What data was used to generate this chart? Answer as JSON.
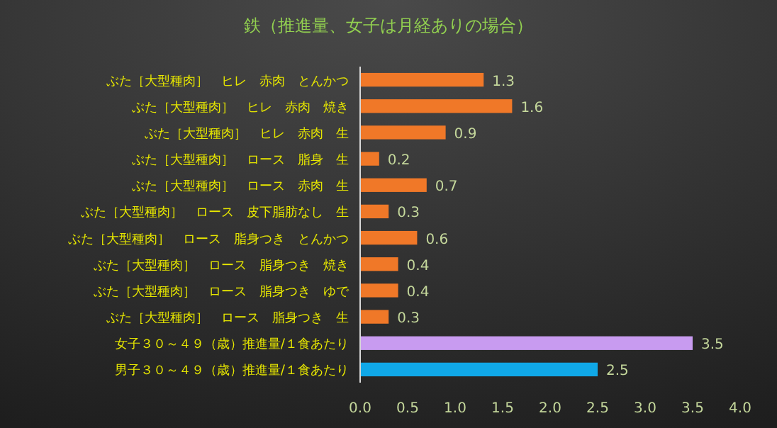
{
  "chart_data": {
    "type": "bar",
    "orientation": "horizontal",
    "title": "鉄（推進量、女子は月経ありの場合）",
    "categories": [
      "ぶた［大型種肉］　ヒレ　赤肉　とんかつ",
      "ぶた［大型種肉］　ヒレ　赤肉　焼き",
      "ぶた［大型種肉］　ヒレ　赤肉　生",
      "ぶた［大型種肉］　ロース　脂身　生",
      "ぶた［大型種肉］　ロース　赤肉　生",
      "ぶた［大型種肉］　ロース　皮下脂肪なし　生",
      "ぶた［大型種肉］　ロース　脂身つき　とんかつ",
      "ぶた［大型種肉］　ロース　脂身つき　焼き",
      "ぶた［大型種肉］　ロース　脂身つき　ゆで",
      "ぶた［大型種肉］　ロース　脂身つき　生",
      "女子３０～４９（歳）推進量/１食あたり",
      "男子３０～４９（歳）推進量/１食あたり"
    ],
    "values": [
      1.3,
      1.6,
      0.9,
      0.2,
      0.7,
      0.3,
      0.6,
      0.4,
      0.4,
      0.3,
      3.5,
      2.5
    ],
    "colors": [
      "#f07828",
      "#f07828",
      "#f07828",
      "#f07828",
      "#f07828",
      "#f07828",
      "#f07828",
      "#f07828",
      "#f07828",
      "#f07828",
      "#c89bf0",
      "#10a8e8"
    ],
    "value_labels": [
      "1.3",
      "1.6",
      "0.9",
      "0.2",
      "0.7",
      "0.3",
      "0.6",
      "0.4",
      "0.4",
      "0.3",
      "3.5",
      "2.5"
    ],
    "xlim": [
      0,
      4
    ],
    "xticks": [
      {
        "value": 0,
        "label": "0.0"
      },
      {
        "value": 0.5,
        "label": "0.5"
      },
      {
        "value": 1,
        "label": "1.0"
      },
      {
        "value": 1.5,
        "label": "1.5"
      },
      {
        "value": 2,
        "label": "2.0"
      },
      {
        "value": 2.5,
        "label": "2.5"
      },
      {
        "value": 3,
        "label": "3.0"
      },
      {
        "value": 3.5,
        "label": "3.5"
      },
      {
        "value": 4,
        "label": "4.0"
      }
    ],
    "grid": false
  }
}
